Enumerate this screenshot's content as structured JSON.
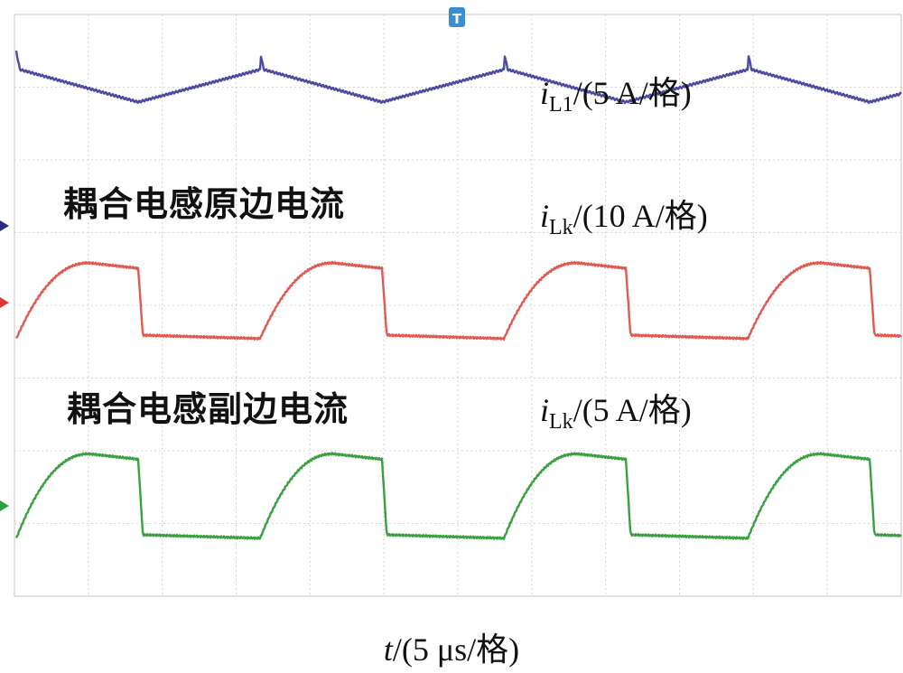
{
  "chart_data": {
    "type": "line",
    "grid": true,
    "x_axis": {
      "label_var": "t",
      "label_unit": "/(5 μs/格)"
    },
    "series": [
      {
        "var": "i",
        "sub": "L1",
        "scale": "/(5 A/格)",
        "color": "#4a4aa0",
        "waveform": "sawtooth",
        "period_us": 16.5,
        "high_div": 1.35,
        "low_div": 0.9
      },
      {
        "var": "i",
        "sub": "Lk",
        "scale": "/(10 A/格)",
        "caption": "耦合电感原边电流",
        "color": "#e05a50",
        "waveform": "square",
        "period_us": 16.5,
        "high_div": 0.55,
        "low_div": -0.5
      },
      {
        "var": "i",
        "sub": "Lk",
        "scale": "/(5 A/格)",
        "caption": "耦合电感副边电流",
        "color": "#3aa040",
        "waveform": "square",
        "period_us": 16.5,
        "high_div": 0.72,
        "low_div": -0.45
      }
    ],
    "markers": {
      "trigger": "T"
    }
  }
}
